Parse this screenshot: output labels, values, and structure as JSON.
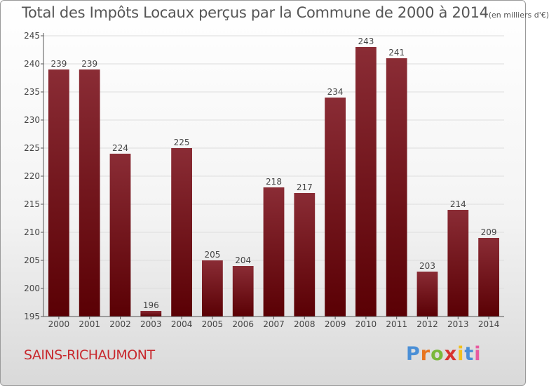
{
  "title": {
    "main": "Total des Impôts Locaux perçus par la Commune de 2000 à 2014",
    "unit": "(en milliers d'€)"
  },
  "commune": "SAINS-RICHAUMONT",
  "logo": {
    "text": "Proxiti",
    "letter_colors": [
      "#4a8fd6",
      "#e8741e",
      "#7ab83c",
      "#d8322e",
      "#f2c01c",
      "#4a8fd6",
      "#e85aa0"
    ]
  },
  "colors": {
    "bar_top": "#8a2c35",
    "bar_bottom": "#5a0004",
    "grid": "#dddddd",
    "axis": "#555555",
    "label": "#444444"
  },
  "chart_data": {
    "type": "bar",
    "title": "Total des Impôts Locaux perçus par la Commune de 2000 à 2014 (en milliers d'€)",
    "xlabel": "",
    "ylabel": "",
    "ylim": [
      195,
      245
    ],
    "yticks": [
      195,
      200,
      205,
      210,
      215,
      220,
      225,
      230,
      235,
      240,
      245
    ],
    "categories": [
      "2000",
      "2001",
      "2002",
      "2003",
      "2004",
      "2005",
      "2006",
      "2007",
      "2008",
      "2009",
      "2010",
      "2011",
      "2012",
      "2013",
      "2014"
    ],
    "values": [
      239,
      239,
      224,
      196,
      225,
      205,
      204,
      218,
      217,
      234,
      243,
      241,
      203,
      214,
      209
    ],
    "grid": true
  }
}
